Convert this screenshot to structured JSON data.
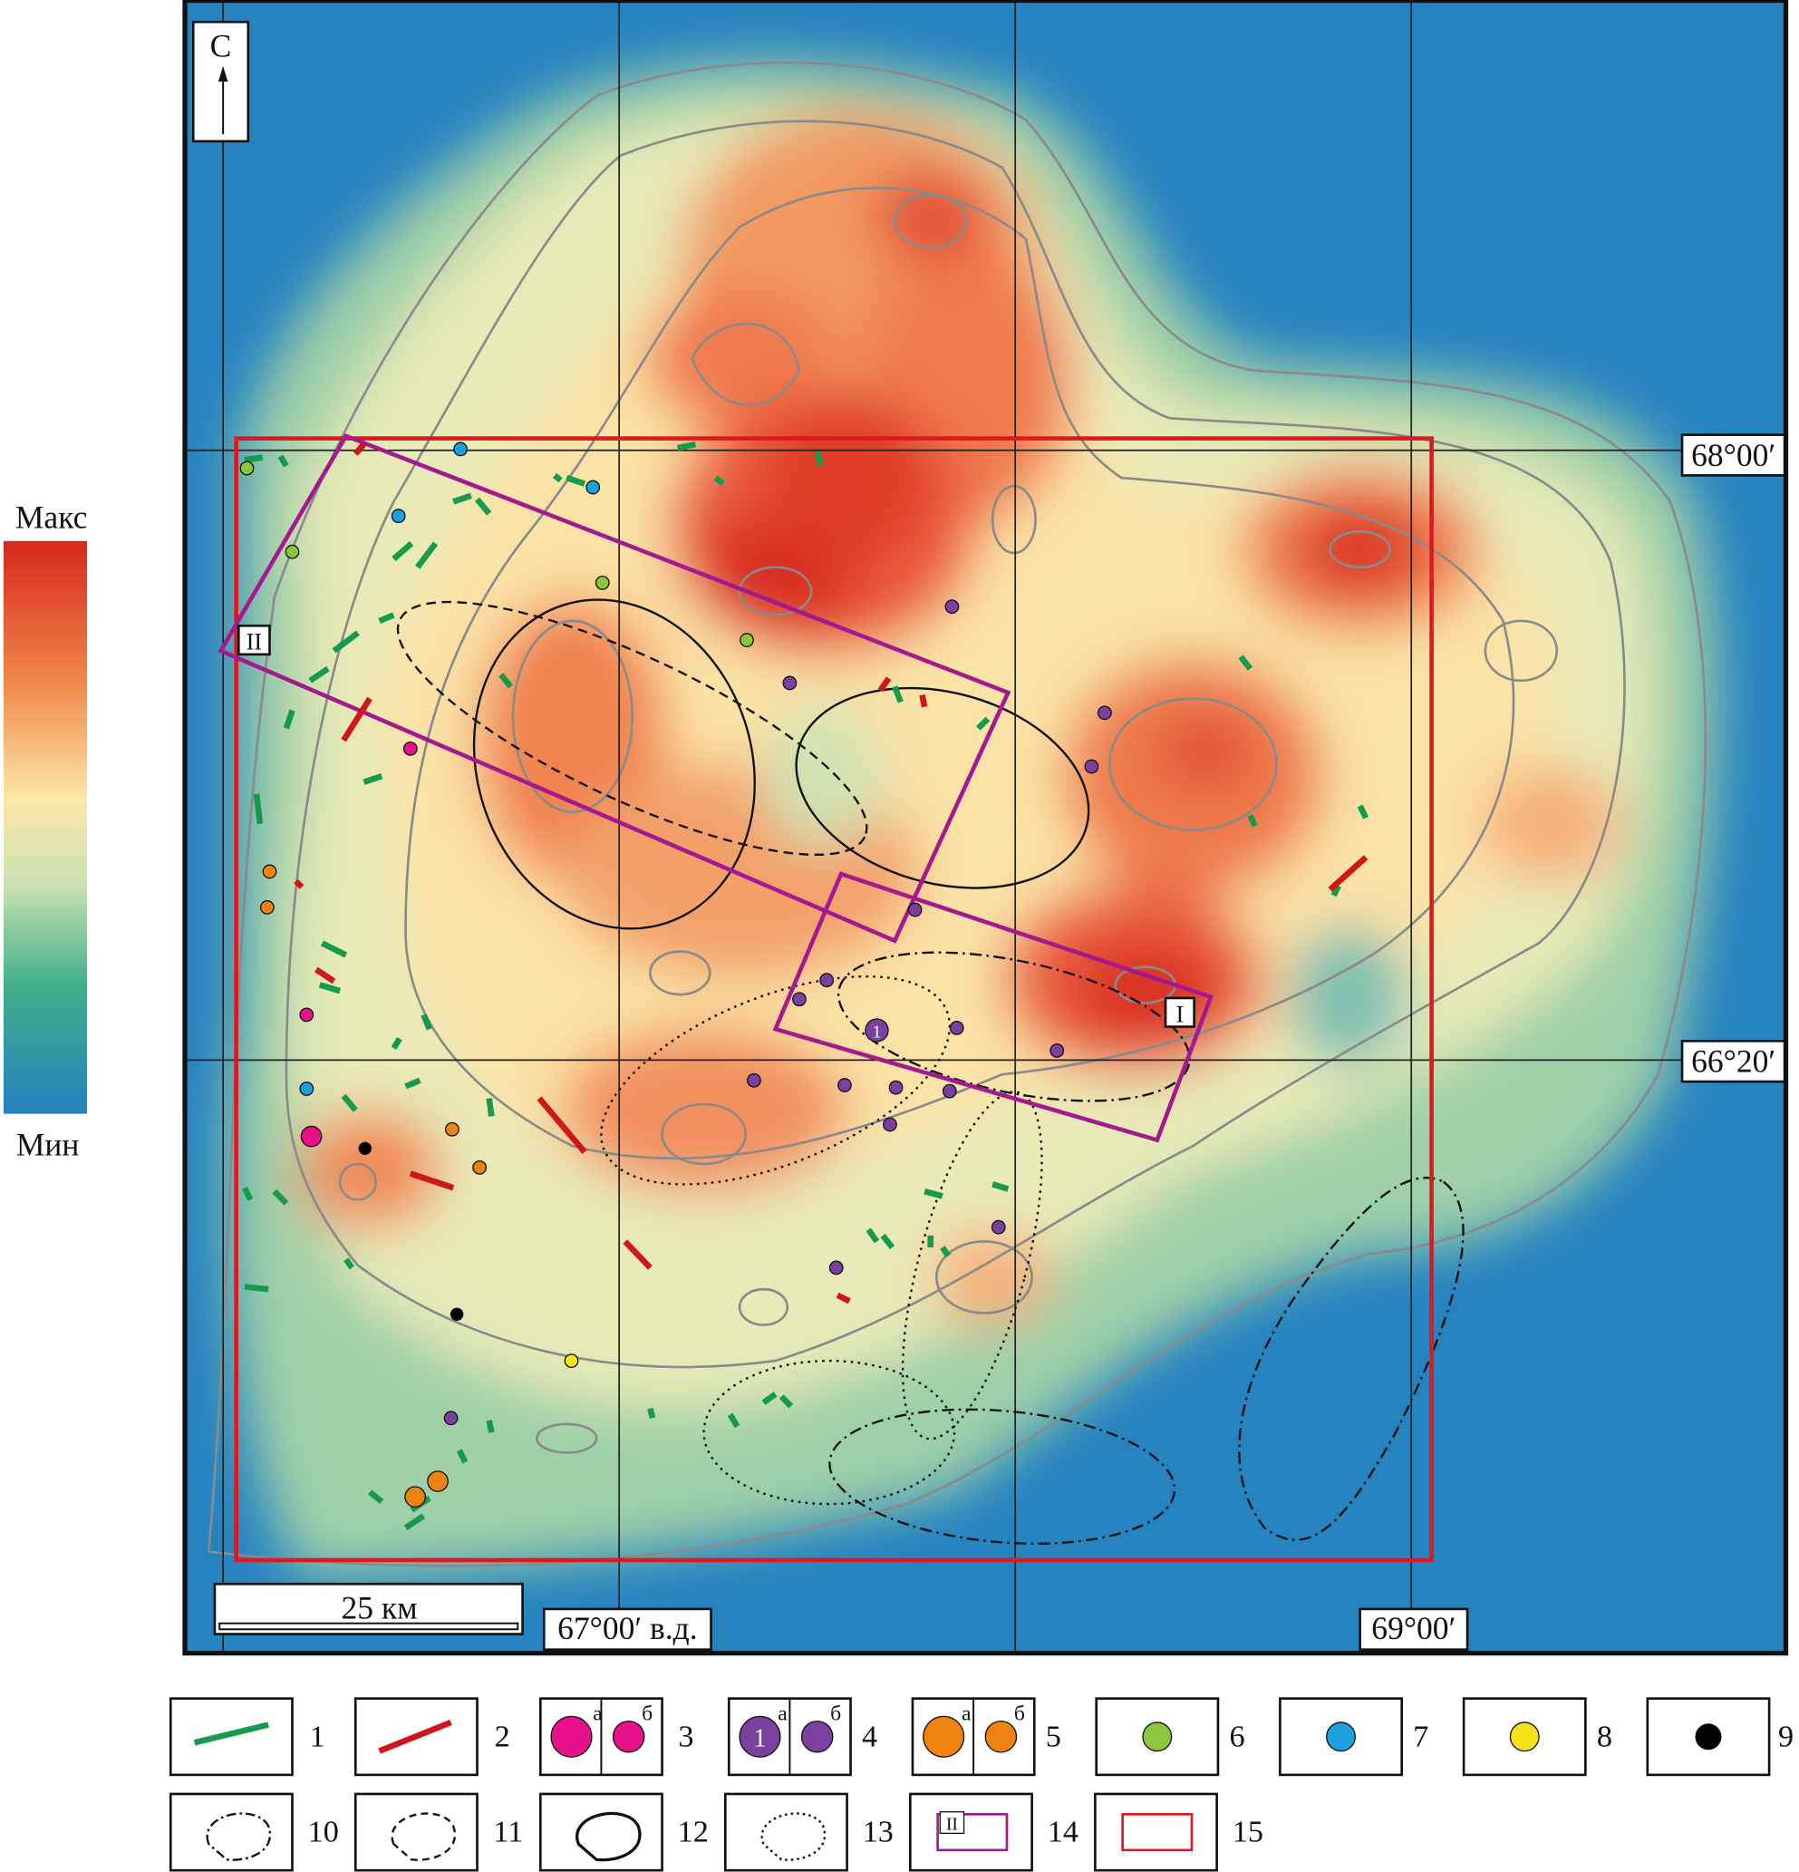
{
  "map": {
    "north": "С",
    "latitudes": [
      "68°00′",
      "66°20′"
    ],
    "longitudes": [
      "67°00′ в.д.",
      "69°00′"
    ],
    "scale_bar": "25 км",
    "profiles": [
      "II",
      "I"
    ],
    "site_number": "1"
  },
  "colorbar": {
    "max": "Макс",
    "min": "Мин"
  },
  "legend": {
    "items": [
      {
        "number": "1"
      },
      {
        "number": "2"
      },
      {
        "number": "3",
        "sub": [
          "а",
          "б"
        ]
      },
      {
        "number": "4",
        "sub": [
          "а",
          "б"
        ],
        "symbol_text": "1"
      },
      {
        "number": "5",
        "sub": [
          "а",
          "б"
        ]
      },
      {
        "number": "6"
      },
      {
        "number": "7"
      },
      {
        "number": "8"
      },
      {
        "number": "9"
      },
      {
        "number": "10"
      },
      {
        "number": "11"
      },
      {
        "number": "12"
      },
      {
        "number": "13"
      },
      {
        "number": "14",
        "symbol_text": "II"
      },
      {
        "number": "15"
      }
    ]
  }
}
